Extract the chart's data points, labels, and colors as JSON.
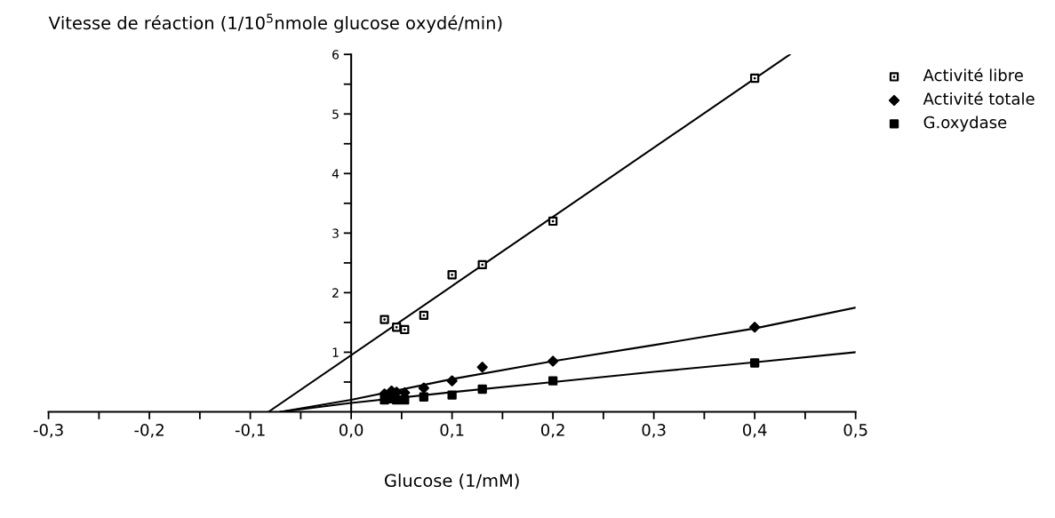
{
  "chart_data": {
    "type": "scatter",
    "xlabel": "Glucose (1/mM)",
    "ylabel": "Vitesse de réaction (1/10$^{5}$nmole glucose oxydé/min)",
    "xlim": [
      -0.3,
      0.5
    ],
    "ylim": [
      0,
      6
    ],
    "xticks": [
      {
        "value": -0.3,
        "label": "-0,3"
      },
      {
        "value": -0.25,
        "label": null
      },
      {
        "value": -0.2,
        "label": "-0,2"
      },
      {
        "value": -0.15,
        "label": null
      },
      {
        "value": -0.1,
        "label": "-0,1"
      },
      {
        "value": -0.05,
        "label": null
      },
      {
        "value": 0,
        "label": "0,0"
      },
      {
        "value": 0.05,
        "label": null
      },
      {
        "value": 0.1,
        "label": "0,1"
      },
      {
        "value": 0.15,
        "label": null
      },
      {
        "value": 0.2,
        "label": "0,2"
      },
      {
        "value": 0.25,
        "label": null
      },
      {
        "value": 0.3,
        "label": "0,3"
      },
      {
        "value": 0.35,
        "label": null
      },
      {
        "value": 0.4,
        "label": "0,4"
      },
      {
        "value": 0.45,
        "label": null
      },
      {
        "value": 0.5,
        "label": "0,5"
      }
    ],
    "yticks": [
      {
        "value": 0.5,
        "label": null
      },
      1,
      {
        "value": 1.5,
        "label": null
      },
      2,
      {
        "value": 2.5,
        "label": null
      },
      3,
      {
        "value": 3.5,
        "label": null
      },
      4,
      {
        "value": 4.5,
        "label": null
      },
      5,
      {
        "value": 5.5,
        "label": null
      },
      6
    ],
    "grid": false,
    "legend": "top right",
    "series": [
      {
        "name": "Activité libre",
        "marker": "square",
        "color": "#000000",
        "x": [
          0.033,
          0.045,
          0.053,
          0.072,
          0.1,
          0.13,
          0.2,
          0.4
        ],
        "values": [
          1.55,
          1.42,
          1.38,
          1.62,
          2.3,
          2.47,
          3.2,
          5.6
        ]
      },
      {
        "name": "Activité totale",
        "marker": "diamond",
        "color": "#000000",
        "x": [
          0.033,
          0.04,
          0.045,
          0.053,
          0.072,
          0.1,
          0.13,
          0.2,
          0.4
        ],
        "values": [
          0.3,
          0.35,
          0.33,
          0.32,
          0.4,
          0.52,
          0.75,
          0.85,
          1.42
        ]
      },
      {
        "name": "G.oxydase",
        "marker": "square",
        "color": "#000000",
        "x": [
          0.033,
          0.04,
          0.045,
          0.053,
          0.072,
          0.1,
          0.13,
          0.2,
          0.4
        ],
        "values": [
          0.2,
          0.22,
          0.2,
          0.2,
          0.25,
          0.28,
          0.38,
          0.52,
          0.82
        ]
      },
      {
        "type": "line",
        "color": "#000000",
        "x": [
          -0.082,
          0.435
        ],
        "values": [
          0,
          6
        ]
      },
      {
        "type": "line",
        "color": "#000000",
        "x": [
          -0.07,
          0,
          0.1,
          0.2,
          0.3,
          0.4,
          0.5
        ],
        "values": [
          0,
          0.2,
          0.55,
          0.85,
          1.12,
          1.4,
          1.75
        ]
      },
      {
        "type": "line",
        "color": "#000000",
        "x": [
          -0.07,
          0,
          0.1,
          0.2,
          0.3,
          0.4,
          0.5
        ],
        "values": [
          0,
          0.15,
          0.33,
          0.5,
          0.67,
          0.83,
          1.0
        ]
      }
    ]
  }
}
